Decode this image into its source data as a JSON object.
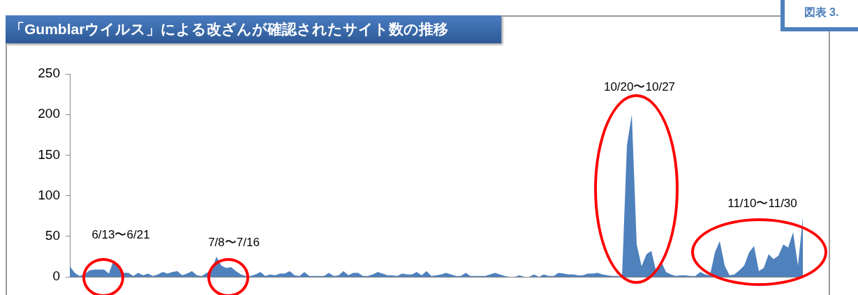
{
  "chart_data": {
    "type": "area",
    "title": "「Gumblarウイルス」による改ざんが確認されたサイト数の推移",
    "subtitle": "図表 3.",
    "categories": [
      null,
      null,
      null,
      null,
      null,
      null,
      null,
      null,
      null,
      null,
      null,
      null,
      null,
      null,
      null,
      null,
      null,
      null,
      null,
      null,
      null,
      null,
      null,
      null,
      null,
      null,
      null,
      null,
      null,
      null,
      null,
      null,
      null,
      null,
      null,
      null,
      null,
      null,
      null,
      null,
      null,
      null,
      null,
      null,
      null,
      null,
      null,
      null,
      null,
      null,
      null,
      null,
      null,
      null,
      null,
      null,
      null,
      null,
      null,
      null,
      null,
      null,
      null,
      null,
      null,
      null,
      null,
      null,
      null,
      null,
      null,
      null,
      null,
      null,
      null,
      null,
      null,
      null,
      null,
      null,
      null,
      null,
      null,
      null,
      null,
      null,
      null,
      null,
      null,
      null,
      null,
      null,
      null,
      null,
      null,
      null,
      null,
      null,
      null,
      null,
      null,
      null,
      null,
      null,
      null,
      null,
      null,
      null,
      null,
      null,
      null,
      null,
      null,
      null,
      null,
      null,
      null,
      null,
      null,
      null,
      null,
      null,
      null,
      null,
      null,
      null,
      null,
      null,
      null,
      null,
      null,
      null,
      null,
      null,
      null,
      null,
      null,
      null,
      null,
      null,
      null,
      null,
      null,
      null,
      null,
      null,
      null,
      null,
      null,
      null,
      null
    ],
    "values": [
      13,
      5,
      1,
      3,
      8,
      9,
      9,
      9,
      4,
      21,
      10,
      5,
      5,
      1,
      5,
      2,
      4,
      1,
      3,
      6,
      4,
      6,
      7,
      2,
      4,
      7,
      2,
      1,
      5,
      8,
      25,
      14,
      11,
      12,
      7,
      3,
      1,
      1,
      3,
      6,
      1,
      3,
      2,
      4,
      4,
      7,
      2,
      1,
      6,
      1,
      1,
      1,
      1,
      5,
      1,
      2,
      7,
      2,
      5,
      5,
      1,
      1,
      3,
      6,
      4,
      2,
      2,
      1,
      4,
      3,
      3,
      6,
      2,
      7,
      1,
      2,
      3,
      5,
      3,
      1,
      1,
      5,
      1,
      1,
      1,
      1,
      3,
      5,
      3,
      1,
      0,
      0,
      2,
      0,
      0,
      3,
      0,
      3,
      1,
      1,
      5,
      4,
      3,
      3,
      2,
      2,
      4,
      4,
      5,
      3,
      2,
      1,
      1,
      0,
      162,
      200,
      40,
      13,
      28,
      32,
      6,
      19,
      6,
      3,
      1,
      2,
      2,
      1,
      1,
      6,
      3,
      2,
      30,
      44,
      14,
      2,
      3,
      8,
      14,
      30,
      38,
      7,
      11,
      28,
      22,
      26,
      40,
      36,
      55,
      14,
      73
    ],
    "color": "#4f81bd",
    "ylim": [
      0,
      250
    ],
    "yticks": [
      0,
      50,
      100,
      150,
      200,
      250
    ],
    "grid": false,
    "legend": false,
    "annotations": [
      "6/13〜6/21",
      "7/8〜7/16",
      "10/20〜10/27",
      "11/10〜11/30"
    ]
  }
}
